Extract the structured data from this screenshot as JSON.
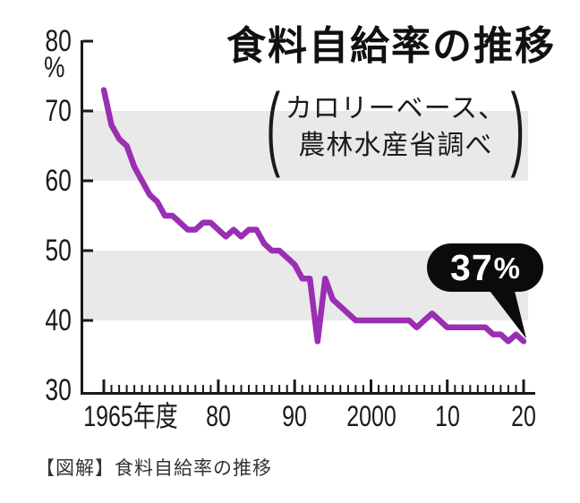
{
  "figure": {
    "title": "食料自給率の推移",
    "subtitle_line1": "カロリーベース、",
    "subtitle_line2": "農林水産省調べ",
    "paren_open": "(",
    "paren_close": ")",
    "annotation": {
      "value": "37",
      "unit": "%"
    },
    "caption": "【図解】食料自給率の推移"
  },
  "chart_data": {
    "type": "line",
    "title": "食料自給率の推移",
    "subtitle": "カロリーベース、農林水産省調べ",
    "x_start": 1965,
    "x_end": 2020,
    "x_interval": 1,
    "series": [
      {
        "name": "食料自給率（カロリーベース）",
        "values": [
          73,
          68,
          66,
          65,
          62,
          60,
          58,
          57,
          55,
          55,
          54,
          53,
          53,
          54,
          54,
          53,
          52,
          53,
          52,
          53,
          53,
          51,
          50,
          50,
          49,
          48,
          46,
          46,
          37,
          46,
          43,
          42,
          41,
          40,
          40,
          40,
          40,
          40,
          40,
          40,
          40,
          39,
          40,
          41,
          40,
          39,
          39,
          39,
          39,
          39,
          39,
          38,
          38,
          37,
          38,
          37
        ]
      }
    ],
    "x_ticks": [
      {
        "year": 1965,
        "label": "1965年度"
      },
      {
        "year": 1980,
        "label": "80"
      },
      {
        "year": 1990,
        "label": "90"
      },
      {
        "year": 2000,
        "label": "2000"
      },
      {
        "year": 2010,
        "label": "10"
      },
      {
        "year": 2020,
        "label": "20"
      }
    ],
    "y_ticks": [
      80,
      70,
      60,
      50,
      40,
      30
    ],
    "y_unit": "%",
    "ylim": [
      30,
      80
    ],
    "xlim": [
      1965,
      2020
    ],
    "shaded_bands": [
      [
        60,
        70
      ],
      [
        40,
        50
      ]
    ],
    "grid": "off",
    "legend": "none",
    "annotation": {
      "label": "37%",
      "year": 2020,
      "value": 37
    },
    "colors": {
      "line": "#9a2fb3",
      "band": "#e9e9e9",
      "axis": "#1a1a1a",
      "callout_bg": "#0b0b0b",
      "callout_text": "#ffffff"
    }
  }
}
